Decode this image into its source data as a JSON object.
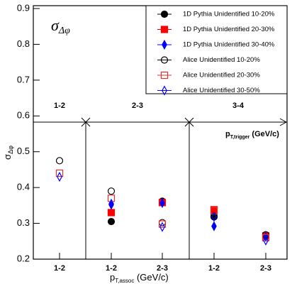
{
  "chart_data": {
    "type": "scatter",
    "annotation": [
      "σ",
      "Δφ"
    ],
    "ylabel": [
      "σ",
      "Δφ"
    ],
    "xlabel": [
      "p",
      "T,assoc",
      " (GeV/c)"
    ],
    "trigger_label": [
      "p",
      "T,trigger",
      " (GeV/c)"
    ],
    "trigger_groups": [
      "1-2",
      "2-3",
      "3-4"
    ],
    "categories": [
      "1-2",
      "1-2",
      "2-3",
      "1-2",
      "2-3"
    ],
    "ylim": [
      0.2,
      0.9
    ],
    "yticks": [
      0.2,
      0.3,
      0.4,
      0.5,
      0.6,
      0.7,
      0.8,
      0.9
    ],
    "series": [
      {
        "name": "1D Pythia Unidentified 10-20%",
        "color": "#000000",
        "marker": "circle",
        "filled": true,
        "values": [
          null,
          0.305,
          0.362,
          0.318,
          0.268
        ]
      },
      {
        "name": "1D Pythia Unidentified 20-30%",
        "color": "#ff0000",
        "marker": "square",
        "filled": true,
        "values": [
          null,
          0.33,
          0.358,
          0.338,
          0.265
        ]
      },
      {
        "name": "1D Pythia Unidentified 30-40%",
        "color": "#0000ff",
        "marker": "diamond",
        "filled": true,
        "values": [
          null,
          0.355,
          0.357,
          0.292,
          0.262
        ]
      },
      {
        "name": "Alice Unidentified 10-20%",
        "color": "#000000",
        "marker": "circle",
        "filled": false,
        "values": [
          0.475,
          0.39,
          0.302,
          0.32,
          0.268
        ]
      },
      {
        "name": "Alice Unidentified 20-30%",
        "color": "#e03030",
        "marker": "square",
        "filled": false,
        "values": [
          0.44,
          0.37,
          0.298,
          0.335,
          0.26
        ]
      },
      {
        "name": "Alice Unidentified 30-50%",
        "color": "#0000ff",
        "marker": "diamond",
        "filled": false,
        "values": [
          0.43,
          0.352,
          0.29,
          0.318,
          0.252
        ]
      }
    ]
  }
}
